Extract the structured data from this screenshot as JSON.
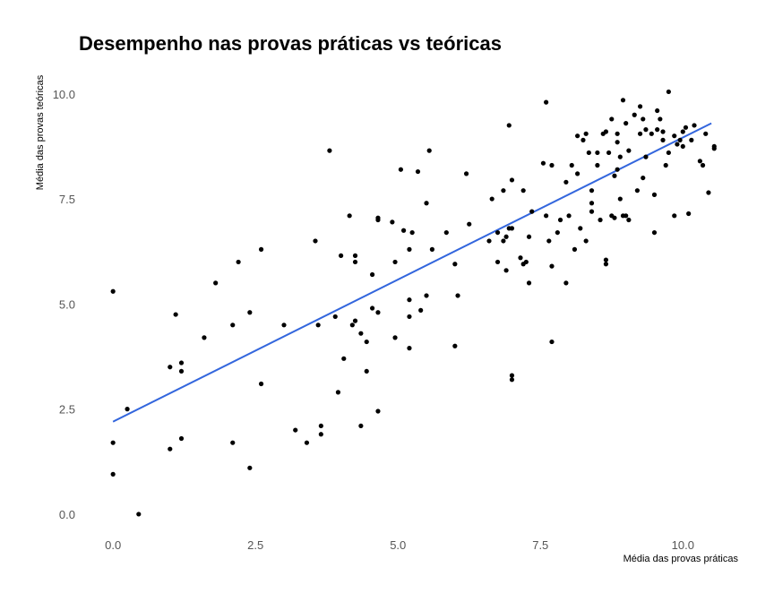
{
  "chart_data": {
    "type": "scatter",
    "title": "Desempenho nas provas práticas vs teóricas",
    "xlabel": "Média das provas práticas",
    "ylabel": "Média das provas teóricas",
    "xlim": [
      -0.6,
      10.75
    ],
    "ylim": [
      -0.3,
      10.4
    ],
    "x_ticks": [
      0.0,
      2.5,
      5.0,
      7.5,
      10.0
    ],
    "x_tick_labels": [
      "0.0",
      "2.5",
      "5.0",
      "7.5",
      "10.0"
    ],
    "y_ticks": [
      0.0,
      2.5,
      5.0,
      7.5,
      10.0
    ],
    "y_tick_labels": [
      "0.0",
      "2.5",
      "5.0",
      "7.5",
      "10.0"
    ],
    "grid": false,
    "legend": "none",
    "point_color": "#000000",
    "trend_line": {
      "x": [
        0.0,
        10.5
      ],
      "y": [
        2.2,
        9.3
      ],
      "color": "#3366dd"
    },
    "points": [
      [
        0.0,
        5.3
      ],
      [
        0.0,
        1.7
      ],
      [
        0.0,
        0.95
      ],
      [
        0.25,
        2.5
      ],
      [
        0.45,
        0.0
      ],
      [
        1.0,
        3.5
      ],
      [
        1.0,
        1.55
      ],
      [
        1.1,
        4.75
      ],
      [
        1.2,
        3.6
      ],
      [
        1.2,
        3.4
      ],
      [
        1.2,
        1.8
      ],
      [
        1.6,
        4.2
      ],
      [
        1.8,
        5.5
      ],
      [
        2.1,
        4.5
      ],
      [
        2.1,
        1.7
      ],
      [
        2.2,
        6.0
      ],
      [
        2.4,
        4.8
      ],
      [
        2.4,
        1.1
      ],
      [
        2.6,
        6.3
      ],
      [
        2.6,
        3.1
      ],
      [
        3.0,
        4.5
      ],
      [
        3.2,
        2.0
      ],
      [
        3.4,
        1.7
      ],
      [
        3.55,
        6.5
      ],
      [
        3.6,
        4.5
      ],
      [
        3.65,
        2.1
      ],
      [
        3.65,
        1.9
      ],
      [
        3.8,
        8.65
      ],
      [
        3.9,
        4.7
      ],
      [
        3.95,
        2.9
      ],
      [
        4.0,
        6.15
      ],
      [
        4.05,
        3.7
      ],
      [
        4.15,
        7.1
      ],
      [
        4.2,
        4.5
      ],
      [
        4.25,
        6.0
      ],
      [
        4.25,
        6.15
      ],
      [
        4.25,
        4.6
      ],
      [
        4.35,
        4.3
      ],
      [
        4.35,
        2.1
      ],
      [
        4.45,
        4.1
      ],
      [
        4.45,
        3.4
      ],
      [
        4.55,
        5.7
      ],
      [
        4.55,
        4.9
      ],
      [
        4.65,
        7.05
      ],
      [
        4.65,
        7.0
      ],
      [
        4.65,
        4.8
      ],
      [
        4.65,
        2.45
      ],
      [
        4.9,
        6.95
      ],
      [
        4.95,
        6.0
      ],
      [
        4.95,
        4.2
      ],
      [
        5.05,
        8.2
      ],
      [
        5.1,
        6.75
      ],
      [
        5.2,
        6.3
      ],
      [
        5.2,
        5.1
      ],
      [
        5.2,
        4.7
      ],
      [
        5.2,
        3.95
      ],
      [
        5.25,
        6.7
      ],
      [
        5.35,
        8.15
      ],
      [
        5.4,
        4.85
      ],
      [
        5.5,
        5.2
      ],
      [
        5.5,
        7.4
      ],
      [
        5.55,
        8.65
      ],
      [
        5.6,
        6.3
      ],
      [
        5.85,
        6.7
      ],
      [
        6.0,
        5.95
      ],
      [
        6.05,
        5.2
      ],
      [
        6.0,
        4.0
      ],
      [
        6.2,
        8.1
      ],
      [
        6.25,
        6.9
      ],
      [
        6.6,
        6.5
      ],
      [
        6.65,
        7.5
      ],
      [
        6.75,
        6.7
      ],
      [
        6.75,
        6.0
      ],
      [
        6.85,
        7.7
      ],
      [
        6.85,
        6.5
      ],
      [
        6.9,
        6.6
      ],
      [
        6.95,
        9.25
      ],
      [
        6.95,
        6.8
      ],
      [
        6.9,
        5.8
      ],
      [
        7.0,
        7.95
      ],
      [
        7.0,
        6.8
      ],
      [
        7.0,
        3.3
      ],
      [
        7.0,
        3.2
      ],
      [
        7.15,
        6.1
      ],
      [
        7.2,
        7.7
      ],
      [
        7.2,
        5.95
      ],
      [
        7.25,
        6.0
      ],
      [
        7.3,
        6.6
      ],
      [
        7.3,
        5.5
      ],
      [
        7.35,
        7.2
      ],
      [
        7.55,
        8.35
      ],
      [
        7.6,
        9.8
      ],
      [
        7.6,
        7.1
      ],
      [
        7.65,
        6.5
      ],
      [
        7.7,
        8.3
      ],
      [
        7.7,
        5.9
      ],
      [
        7.7,
        4.1
      ],
      [
        7.8,
        6.7
      ],
      [
        7.85,
        7.0
      ],
      [
        7.95,
        7.9
      ],
      [
        8.0,
        7.1
      ],
      [
        7.95,
        5.5
      ],
      [
        8.05,
        8.3
      ],
      [
        8.1,
        6.3
      ],
      [
        8.15,
        9.0
      ],
      [
        8.15,
        8.1
      ],
      [
        8.2,
        6.8
      ],
      [
        8.25,
        8.9
      ],
      [
        8.3,
        9.05
      ],
      [
        8.3,
        6.5
      ],
      [
        8.35,
        8.6
      ],
      [
        8.4,
        7.7
      ],
      [
        8.4,
        7.4
      ],
      [
        8.4,
        7.2
      ],
      [
        8.5,
        8.3
      ],
      [
        8.5,
        8.6
      ],
      [
        8.55,
        7.0
      ],
      [
        8.6,
        9.05
      ],
      [
        8.65,
        9.1
      ],
      [
        8.65,
        6.05
      ],
      [
        8.65,
        5.95
      ],
      [
        8.7,
        8.6
      ],
      [
        8.75,
        9.4
      ],
      [
        8.75,
        7.1
      ],
      [
        8.8,
        8.05
      ],
      [
        8.8,
        7.05
      ],
      [
        8.85,
        9.05
      ],
      [
        8.85,
        8.2
      ],
      [
        8.85,
        8.85
      ],
      [
        8.9,
        7.5
      ],
      [
        8.9,
        8.5
      ],
      [
        8.95,
        9.85
      ],
      [
        8.95,
        7.1
      ],
      [
        9.0,
        9.3
      ],
      [
        9.0,
        7.1
      ],
      [
        9.05,
        8.65
      ],
      [
        9.05,
        7.0
      ],
      [
        9.15,
        9.5
      ],
      [
        9.2,
        7.7
      ],
      [
        9.25,
        9.7
      ],
      [
        9.25,
        9.05
      ],
      [
        9.3,
        9.4
      ],
      [
        9.3,
        8.0
      ],
      [
        9.35,
        9.15
      ],
      [
        9.35,
        8.5
      ],
      [
        9.45,
        9.05
      ],
      [
        9.5,
        7.6
      ],
      [
        9.5,
        6.7
      ],
      [
        9.55,
        9.6
      ],
      [
        9.55,
        9.15
      ],
      [
        9.6,
        9.4
      ],
      [
        9.65,
        9.1
      ],
      [
        9.65,
        8.9
      ],
      [
        9.7,
        8.3
      ],
      [
        9.75,
        10.05
      ],
      [
        9.75,
        8.6
      ],
      [
        9.85,
        7.1
      ],
      [
        9.85,
        9.0
      ],
      [
        9.9,
        8.8
      ],
      [
        9.95,
        8.9
      ],
      [
        10.0,
        9.1
      ],
      [
        10.0,
        8.75
      ],
      [
        10.05,
        9.2
      ],
      [
        10.1,
        7.15
      ],
      [
        10.15,
        8.9
      ],
      [
        10.2,
        9.25
      ],
      [
        10.3,
        8.4
      ],
      [
        10.35,
        8.3
      ],
      [
        10.4,
        9.05
      ],
      [
        10.45,
        7.65
      ],
      [
        10.55,
        8.75
      ],
      [
        10.55,
        8.7
      ]
    ]
  }
}
